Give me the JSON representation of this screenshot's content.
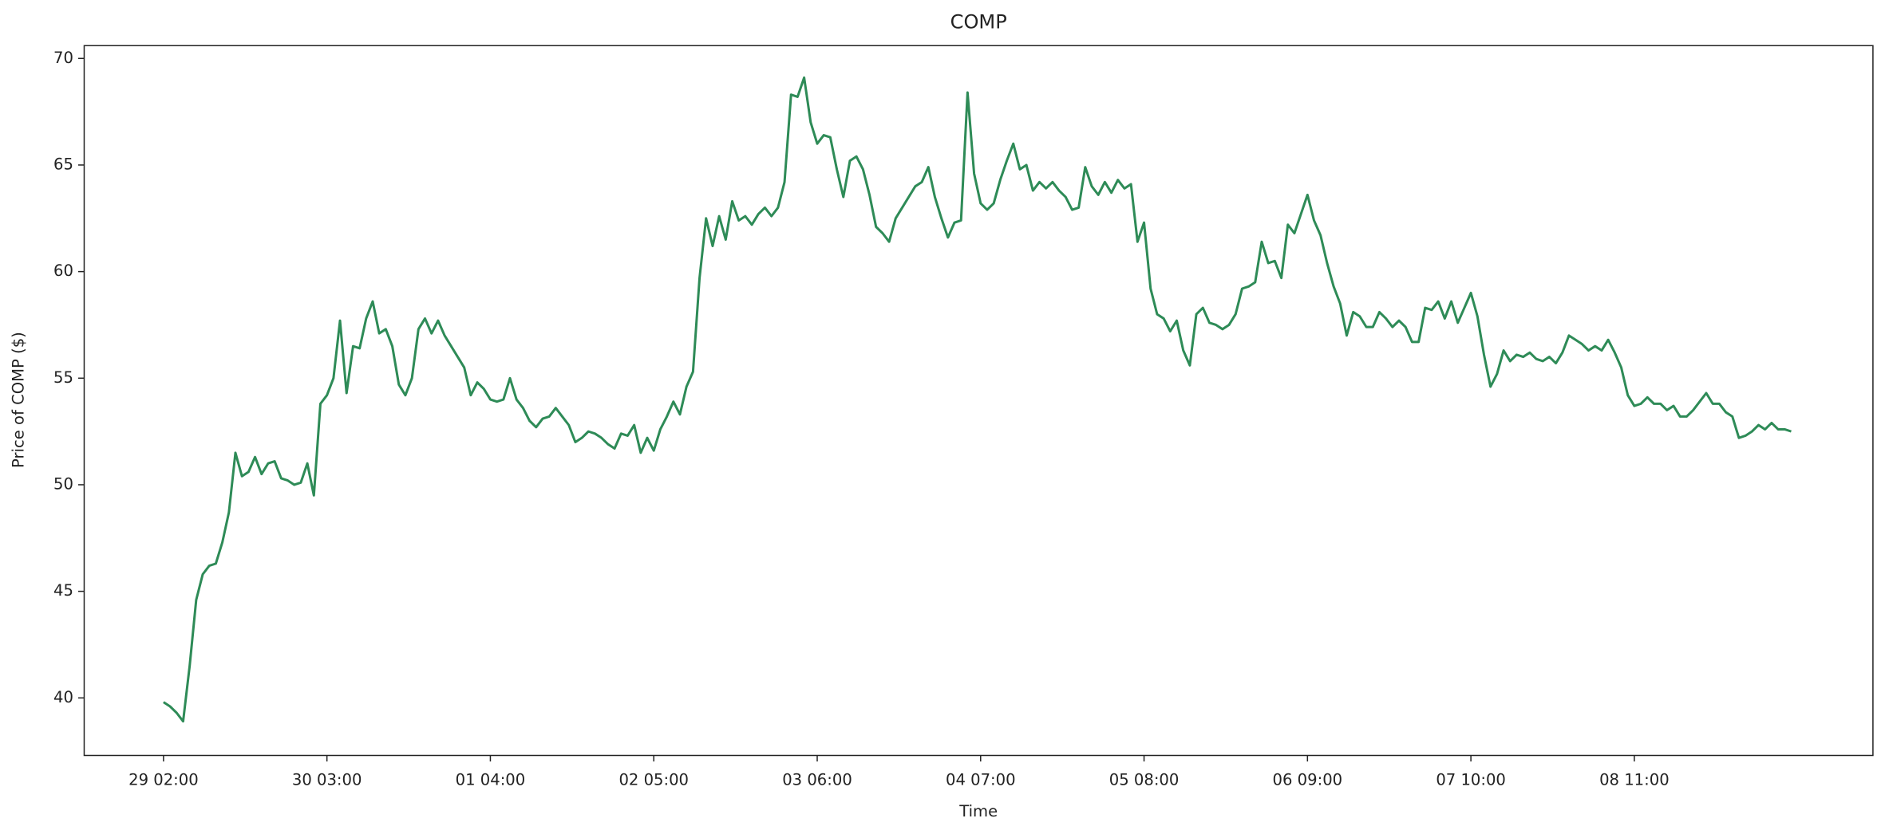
{
  "chart_data": {
    "type": "line",
    "title": "COMP",
    "xlabel": "Time",
    "ylabel": "Price of COMP ($)",
    "x": [
      "29 02:00",
      "29 03:00",
      "29 04:00",
      "29 05:00",
      "29 06:00",
      "29 07:00",
      "29 08:00",
      "29 09:00",
      "29 10:00",
      "29 11:00",
      "29 12:00",
      "29 13:00",
      "29 14:00",
      "29 15:00",
      "29 16:00",
      "29 17:00",
      "29 18:00",
      "29 19:00",
      "29 20:00",
      "29 21:00",
      "29 22:00",
      "29 23:00",
      "30 00:00",
      "30 01:00",
      "30 02:00",
      "30 03:00",
      "30 04:00",
      "30 05:00",
      "30 06:00",
      "30 07:00",
      "30 08:00",
      "30 09:00",
      "30 10:00",
      "30 11:00",
      "30 12:00",
      "30 13:00",
      "30 14:00",
      "30 15:00",
      "30 16:00",
      "30 17:00",
      "30 18:00",
      "30 19:00",
      "30 20:00",
      "30 21:00",
      "30 22:00",
      "30 23:00",
      "01 00:00",
      "01 01:00",
      "01 02:00",
      "01 03:00",
      "01 04:00",
      "01 05:00",
      "01 06:00",
      "01 07:00",
      "01 08:00",
      "01 09:00",
      "01 10:00",
      "01 11:00",
      "01 12:00",
      "01 13:00",
      "01 14:00",
      "01 15:00",
      "01 16:00",
      "01 17:00",
      "01 18:00",
      "01 19:00",
      "01 20:00",
      "01 21:00",
      "01 22:00",
      "01 23:00",
      "02 00:00",
      "02 01:00",
      "02 02:00",
      "02 03:00",
      "02 04:00",
      "02 05:00",
      "02 06:00",
      "02 07:00",
      "02 08:00",
      "02 09:00",
      "02 10:00",
      "02 11:00",
      "02 12:00",
      "02 13:00",
      "02 14:00",
      "02 15:00",
      "02 16:00",
      "02 17:00",
      "02 18:00",
      "02 19:00",
      "02 20:00",
      "02 21:00",
      "02 22:00",
      "02 23:00",
      "03 00:00",
      "03 01:00",
      "03 02:00",
      "03 03:00",
      "03 04:00",
      "03 05:00",
      "03 06:00",
      "03 07:00",
      "03 08:00",
      "03 09:00",
      "03 10:00",
      "03 11:00",
      "03 12:00",
      "03 13:00",
      "03 14:00",
      "03 15:00",
      "03 16:00",
      "03 17:00",
      "03 18:00",
      "03 19:00",
      "03 20:00",
      "03 21:00",
      "03 22:00",
      "03 23:00",
      "04 00:00",
      "04 01:00",
      "04 02:00",
      "04 03:00",
      "04 04:00",
      "04 05:00",
      "04 06:00",
      "04 07:00",
      "04 08:00",
      "04 09:00",
      "04 10:00",
      "04 11:00",
      "04 12:00",
      "04 13:00",
      "04 14:00",
      "04 15:00",
      "04 16:00",
      "04 17:00",
      "04 18:00",
      "04 19:00",
      "04 20:00",
      "04 21:00",
      "04 22:00",
      "04 23:00",
      "05 00:00",
      "05 01:00",
      "05 02:00",
      "05 03:00",
      "05 04:00",
      "05 05:00",
      "05 06:00",
      "05 07:00",
      "05 08:00",
      "05 09:00",
      "05 10:00",
      "05 11:00",
      "05 12:00",
      "05 13:00",
      "05 14:00",
      "05 15:00",
      "05 16:00",
      "05 17:00",
      "05 18:00",
      "05 19:00",
      "05 20:00",
      "05 21:00",
      "05 22:00",
      "05 23:00",
      "06 00:00",
      "06 01:00",
      "06 02:00",
      "06 03:00",
      "06 04:00",
      "06 05:00",
      "06 06:00",
      "06 07:00",
      "06 08:00",
      "06 09:00",
      "06 10:00",
      "06 11:00",
      "06 12:00",
      "06 13:00",
      "06 14:00",
      "06 15:00",
      "06 16:00",
      "06 17:00",
      "06 18:00",
      "06 19:00",
      "06 20:00",
      "06 21:00",
      "06 22:00",
      "06 23:00",
      "07 00:00",
      "07 01:00",
      "07 02:00",
      "07 03:00",
      "07 04:00",
      "07 05:00",
      "07 06:00",
      "07 07:00",
      "07 08:00",
      "07 09:00",
      "07 10:00",
      "07 11:00",
      "07 12:00",
      "07 13:00",
      "07 14:00",
      "07 15:00",
      "07 16:00",
      "07 17:00",
      "07 18:00",
      "07 19:00",
      "07 20:00",
      "07 21:00",
      "07 22:00",
      "07 23:00",
      "08 00:00",
      "08 01:00",
      "08 02:00",
      "08 03:00",
      "08 04:00",
      "08 05:00",
      "08 06:00",
      "08 07:00",
      "08 08:00",
      "08 09:00",
      "08 10:00",
      "08 11:00",
      "08 12:00",
      "08 13:00",
      "08 14:00",
      "08 15:00",
      "08 16:00",
      "08 17:00",
      "08 18:00",
      "08 19:00",
      "08 20:00",
      "08 21:00",
      "08 22:00",
      "08 23:00",
      "09 00:00",
      "09 01:00",
      "09 02:00",
      "09 03:00",
      "09 04:00",
      "09 05:00",
      "09 06:00",
      "09 07:00",
      "09 08:00",
      "09 09:00",
      "09 10:00",
      "09 11:00"
    ],
    "series": [
      {
        "name": "COMP",
        "color": "#2e8b57",
        "values": [
          39.8,
          39.6,
          39.3,
          38.9,
          41.5,
          44.6,
          45.8,
          46.2,
          46.3,
          47.3,
          48.7,
          51.5,
          50.4,
          50.6,
          51.3,
          50.5,
          51.0,
          51.1,
          50.3,
          50.2,
          50.0,
          50.1,
          51.0,
          49.5,
          53.8,
          54.2,
          55.0,
          57.7,
          54.3,
          56.5,
          56.4,
          57.8,
          58.6,
          57.1,
          57.3,
          56.5,
          54.7,
          54.2,
          55.0,
          57.3,
          57.8,
          57.1,
          57.7,
          57.0,
          56.5,
          56.0,
          55.5,
          54.2,
          54.8,
          54.5,
          54.0,
          53.9,
          54.0,
          55.0,
          54.0,
          53.6,
          53.0,
          52.7,
          53.1,
          53.2,
          53.6,
          53.2,
          52.8,
          52.0,
          52.2,
          52.5,
          52.4,
          52.2,
          51.9,
          51.7,
          52.4,
          52.3,
          52.8,
          51.5,
          52.2,
          51.6,
          52.6,
          53.2,
          53.9,
          53.3,
          54.6,
          55.3,
          59.7,
          62.5,
          61.2,
          62.6,
          61.5,
          63.3,
          62.4,
          62.6,
          62.2,
          62.7,
          63.0,
          62.6,
          63.0,
          64.2,
          68.3,
          68.2,
          69.1,
          67.0,
          66.0,
          66.4,
          66.3,
          64.8,
          63.5,
          65.2,
          65.4,
          64.8,
          63.6,
          62.1,
          61.8,
          61.4,
          62.5,
          63.0,
          63.5,
          64.0,
          64.2,
          64.9,
          63.5,
          62.5,
          61.6,
          62.3,
          62.4,
          68.4,
          64.6,
          63.2,
          62.9,
          63.2,
          64.3,
          65.2,
          66.0,
          64.8,
          65.0,
          63.8,
          64.2,
          63.9,
          64.2,
          63.8,
          63.5,
          62.9,
          63.0,
          64.9,
          64.0,
          63.6,
          64.2,
          63.7,
          64.3,
          63.9,
          64.1,
          61.4,
          62.3,
          59.2,
          58.0,
          57.8,
          57.2,
          57.7,
          56.3,
          55.6,
          58.0,
          58.3,
          57.6,
          57.5,
          57.3,
          57.5,
          58.0,
          59.2,
          59.3,
          59.5,
          61.4,
          60.4,
          60.5,
          59.7,
          62.2,
          61.8,
          62.7,
          63.6,
          62.4,
          61.7,
          60.4,
          59.3,
          58.5,
          57.0,
          58.1,
          57.9,
          57.4,
          57.4,
          58.1,
          57.8,
          57.4,
          57.7,
          57.4,
          56.7,
          56.7,
          58.3,
          58.2,
          58.6,
          57.8,
          58.6,
          57.6,
          58.3,
          59.0,
          57.9,
          56.1,
          54.6,
          55.2,
          56.3,
          55.8,
          56.1,
          56.0,
          56.2,
          55.9,
          55.8,
          56.0,
          55.7,
          56.2,
          57.0,
          56.8,
          56.6,
          56.3,
          56.5,
          56.3,
          56.8,
          56.2,
          55.5,
          54.2,
          53.7,
          53.8,
          54.1,
          53.8,
          53.8,
          53.5,
          53.7,
          53.2,
          53.2,
          53.5,
          53.9,
          54.3,
          53.8,
          53.8,
          53.4,
          53.2,
          52.2,
          52.3,
          52.5,
          52.8,
          52.6,
          52.9,
          52.6,
          52.6,
          52.5
        ]
      }
    ],
    "xticks": [
      "29 02:00",
      "30 03:00",
      "01 04:00",
      "02 05:00",
      "03 06:00",
      "04 07:00",
      "05 08:00",
      "06 09:00",
      "07 10:00",
      "08 11:00"
    ],
    "ylim": [
      37.3,
      70.6
    ],
    "yticks": [
      40,
      45,
      50,
      55,
      60,
      65,
      70
    ],
    "grid": false
  }
}
